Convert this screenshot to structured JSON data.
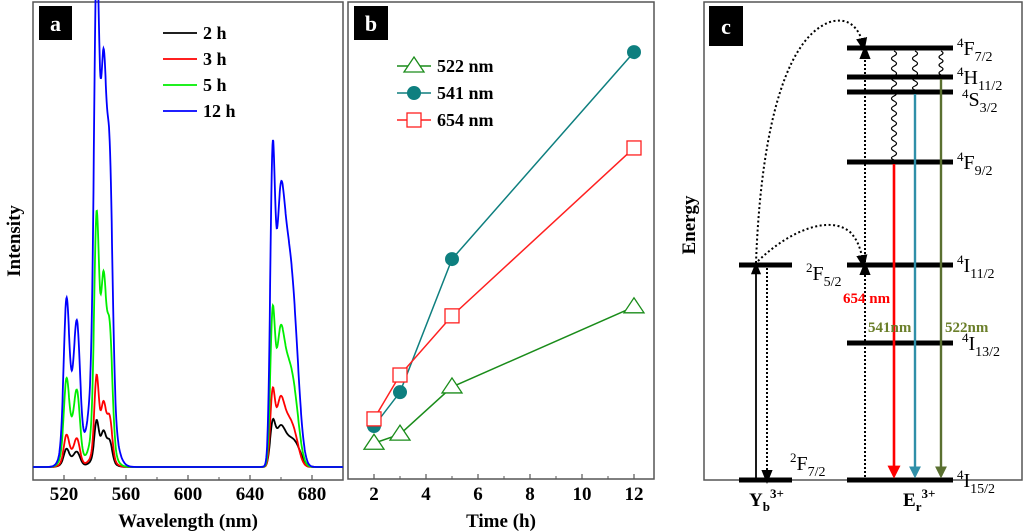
{
  "chart_data": [
    {
      "panel": "a",
      "type": "line",
      "title": "",
      "xlabel": "Wavelength (nm)",
      "ylabel": "Intensity",
      "xlim": [
        500,
        700
      ],
      "ylim": [
        0,
        100
      ],
      "xticks": [
        520,
        560,
        600,
        640,
        680
      ],
      "grid": false,
      "legend_position": "top-center",
      "peak_model_note": "each series is a sum of peaks [center_nm, relative_intensity, width_nm]",
      "series": [
        {
          "name": "2 h",
          "color": "#000000",
          "peaks": [
            [
              521.5,
              2.6,
              1.6
            ],
            [
              528.5,
              2.4,
              2.0
            ],
            [
              524,
              1.6,
              4
            ],
            [
              541,
              7.5,
              1.4
            ],
            [
              545.5,
              4.8,
              1.6
            ],
            [
              549.5,
              4.0,
              1.6
            ],
            [
              544,
              3.0,
              5
            ],
            [
              654.5,
              7.4,
              1.6
            ],
            [
              659,
              5.5,
              3
            ],
            [
              664,
              5.2,
              5
            ],
            [
              670,
              2.6,
              3.5
            ]
          ]
        },
        {
          "name": "3 h",
          "color": "#ff0000",
          "peaks": [
            [
              521.5,
              4.8,
              1.6
            ],
            [
              528.5,
              4.4,
              1.8
            ],
            [
              524.5,
              2.8,
              4
            ],
            [
              541,
              15.5,
              1.4
            ],
            [
              545.5,
              9.0,
              1.6
            ],
            [
              549.5,
              8.0,
              1.6
            ],
            [
              544,
              5.0,
              5
            ],
            [
              654.5,
              14.2,
              1.5
            ],
            [
              659,
              9.5,
              2.5
            ],
            [
              663.5,
              9.5,
              4
            ],
            [
              669,
              4.0,
              3.0
            ]
          ]
        },
        {
          "name": "5 h",
          "color": "#00ee00",
          "peaks": [
            [
              521.5,
              13.0,
              1.6
            ],
            [
              528.5,
              11.5,
              1.8
            ],
            [
              524.5,
              8.0,
              4
            ],
            [
              541,
              42.0,
              1.5
            ],
            [
              545.5,
              26.0,
              1.6
            ],
            [
              549.5,
              22.0,
              1.7
            ],
            [
              544,
              15.0,
              5
            ],
            [
              654.5,
              29.0,
              1.5
            ],
            [
              659,
              18.5,
              2.5
            ],
            [
              663.5,
              19.5,
              4
            ],
            [
              669,
              9.0,
              3.2
            ]
          ]
        },
        {
          "name": "12 h",
          "color": "#0000ff",
          "peaks": [
            [
              521.5,
              26.0,
              1.7
            ],
            [
              528.5,
              22.5,
              1.9
            ],
            [
              524.5,
              13.5,
              4
            ],
            [
              541,
              78.0,
              1.6
            ],
            [
              545.5,
              50.0,
              1.7
            ],
            [
              549.5,
              45.0,
              1.8
            ],
            [
              544,
              36.0,
              5.5
            ],
            [
              654.5,
              58.0,
              1.5
            ],
            [
              659,
              36.0,
              2.6
            ],
            [
              663.5,
              40.0,
              4
            ],
            [
              669,
              18.0,
              3.4
            ]
          ]
        }
      ]
    },
    {
      "panel": "b",
      "type": "line",
      "title": "",
      "xlabel": "Time (h)",
      "ylabel": "",
      "xlim": [
        1,
        12.8
      ],
      "ylim": [
        0,
        100
      ],
      "xticks": [
        2,
        4,
        6,
        8,
        10,
        12
      ],
      "x": [
        2,
        3,
        5,
        12
      ],
      "grid": false,
      "legend_position": "top-left",
      "series": [
        {
          "name": "522 nm",
          "color": "#1a8c1a",
          "marker": "open-triangle",
          "values": [
            7.5,
            9.4,
            19.3,
            36.1
          ]
        },
        {
          "name": "541 nm",
          "color": "#0e7f7f",
          "marker": "filled-circle",
          "values": [
            11.1,
            18.2,
            46.1,
            89.5
          ]
        },
        {
          "name": "654 nm",
          "color": "#ff2020",
          "marker": "open-square",
          "values": [
            12.6,
            21.8,
            34.2,
            69.4
          ]
        }
      ]
    }
  ],
  "panels": {
    "a": {
      "letter": "a"
    },
    "b": {
      "letter": "b"
    },
    "c": {
      "letter": "c",
      "ylabel": "Energy",
      "yb_label": {
        "main": "Y",
        "sub": "b",
        "sup": "3+"
      },
      "er_label": {
        "main": "E",
        "sub": "r",
        "sup": "3+"
      },
      "yb_levels": [
        {
          "sup": "2",
          "term": "F",
          "sub": "5/2"
        },
        {
          "sup": "2",
          "term": "F",
          "sub": "7/2"
        }
      ],
      "er_levels": [
        {
          "sup": "4",
          "term": "F",
          "sub": "7/2"
        },
        {
          "sup": "4",
          "term": "H",
          "sub": "11/2"
        },
        {
          "sup": "4",
          "term": "S",
          "sub": "3/2"
        },
        {
          "sup": "4",
          "term": "F",
          "sub": "9/2"
        },
        {
          "sup": "4",
          "term": "I",
          "sub": "11/2"
        },
        {
          "sup": "4",
          "term": "I",
          "sub": "13/2"
        },
        {
          "sup": "4",
          "term": "I",
          "sub": "15/2"
        }
      ],
      "emissions": [
        {
          "label": "654 nm",
          "color": "#ff0000"
        },
        {
          "label": "541nm",
          "color": "#2f8fa8",
          "label_color": "#6b7f2a"
        },
        {
          "label": "522nm",
          "color": "#5a7030",
          "label_color": "#6b7f2a"
        }
      ]
    }
  }
}
